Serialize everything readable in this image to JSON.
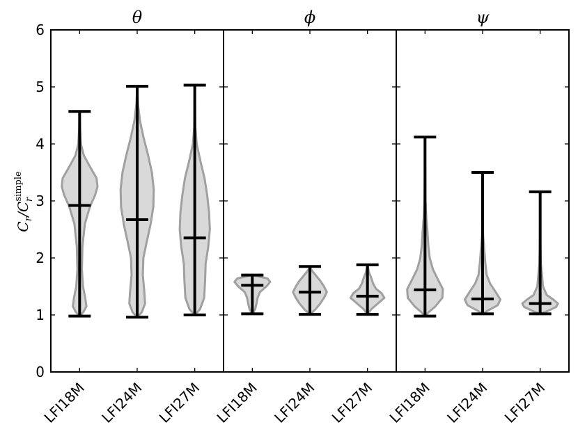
{
  "chart_data": {
    "type": "violin",
    "ylabel": {
      "main": "C",
      "sub": "r",
      "sup": "simple"
    },
    "ylim": [
      0,
      6
    ],
    "yticks": [
      "0",
      "1",
      "2",
      "3",
      "4",
      "5",
      "6"
    ],
    "grid": false,
    "panels": [
      {
        "title": "θ",
        "categories": [
          "LFI18M",
          "LFI24M",
          "LFI27M"
        ],
        "violins": [
          {
            "min": 0.98,
            "max": 4.57,
            "median": 2.92,
            "density": [
              [
                0.98,
                0.0
              ],
              [
                1.05,
                0.2
              ],
              [
                1.15,
                0.36
              ],
              [
                1.3,
                0.3
              ],
              [
                1.5,
                0.18
              ],
              [
                1.8,
                0.12
              ],
              [
                2.2,
                0.15
              ],
              [
                2.6,
                0.28
              ],
              [
                2.9,
                0.55
              ],
              [
                3.1,
                0.82
              ],
              [
                3.25,
                0.95
              ],
              [
                3.4,
                0.9
              ],
              [
                3.6,
                0.55
              ],
              [
                3.8,
                0.22
              ],
              [
                4.0,
                0.07
              ],
              [
                4.3,
                0.02
              ],
              [
                4.57,
                0.0
              ]
            ]
          },
          {
            "min": 0.96,
            "max": 5.01,
            "median": 2.67,
            "density": [
              [
                0.96,
                0.0
              ],
              [
                1.05,
                0.25
              ],
              [
                1.2,
                0.42
              ],
              [
                1.4,
                0.38
              ],
              [
                1.7,
                0.3
              ],
              [
                2.0,
                0.33
              ],
              [
                2.3,
                0.52
              ],
              [
                2.6,
                0.72
              ],
              [
                2.9,
                0.86
              ],
              [
                3.2,
                0.88
              ],
              [
                3.5,
                0.78
              ],
              [
                3.8,
                0.58
              ],
              [
                4.1,
                0.35
              ],
              [
                4.4,
                0.15
              ],
              [
                4.7,
                0.04
              ],
              [
                5.01,
                0.0
              ]
            ]
          },
          {
            "min": 1.0,
            "max": 5.03,
            "median": 2.35,
            "density": [
              [
                1.0,
                0.0
              ],
              [
                1.1,
                0.28
              ],
              [
                1.3,
                0.5
              ],
              [
                1.6,
                0.55
              ],
              [
                1.9,
                0.58
              ],
              [
                2.2,
                0.72
              ],
              [
                2.5,
                0.8
              ],
              [
                2.8,
                0.76
              ],
              [
                3.1,
                0.66
              ],
              [
                3.4,
                0.52
              ],
              [
                3.7,
                0.3
              ],
              [
                4.0,
                0.1
              ],
              [
                4.3,
                0.03
              ],
              [
                5.03,
                0.0
              ]
            ]
          }
        ]
      },
      {
        "title": "ϕ",
        "categories": [
          "LFI18M",
          "LFI24M",
          "LFI27M"
        ],
        "violins": [
          {
            "min": 1.02,
            "max": 1.7,
            "median": 1.52,
            "density": [
              [
                1.02,
                0.0
              ],
              [
                1.1,
                0.15
              ],
              [
                1.2,
                0.22
              ],
              [
                1.3,
                0.28
              ],
              [
                1.4,
                0.4
              ],
              [
                1.5,
                0.75
              ],
              [
                1.58,
                0.95
              ],
              [
                1.64,
                0.8
              ],
              [
                1.7,
                0.0
              ]
            ]
          },
          {
            "min": 1.01,
            "max": 1.85,
            "median": 1.4,
            "density": [
              [
                1.01,
                0.0
              ],
              [
                1.1,
                0.3
              ],
              [
                1.2,
                0.55
              ],
              [
                1.3,
                0.75
              ],
              [
                1.4,
                0.9
              ],
              [
                1.5,
                0.75
              ],
              [
                1.6,
                0.55
              ],
              [
                1.7,
                0.3
              ],
              [
                1.78,
                0.1
              ],
              [
                1.85,
                0.0
              ]
            ]
          },
          {
            "min": 1.01,
            "max": 1.88,
            "median": 1.33,
            "density": [
              [
                1.01,
                0.0
              ],
              [
                1.1,
                0.2
              ],
              [
                1.2,
                0.55
              ],
              [
                1.3,
                0.9
              ],
              [
                1.38,
                0.75
              ],
              [
                1.46,
                0.45
              ],
              [
                1.55,
                0.3
              ],
              [
                1.65,
                0.2
              ],
              [
                1.75,
                0.08
              ],
              [
                1.88,
                0.0
              ]
            ]
          }
        ]
      },
      {
        "title": "ψ",
        "categories": [
          "LFI18M",
          "LFI24M",
          "LFI27M"
        ],
        "violins": [
          {
            "min": 0.98,
            "max": 4.12,
            "median": 1.44,
            "density": [
              [
                0.98,
                0.0
              ],
              [
                1.05,
                0.2
              ],
              [
                1.15,
                0.55
              ],
              [
                1.3,
                0.92
              ],
              [
                1.45,
                0.95
              ],
              [
                1.6,
                0.72
              ],
              [
                1.8,
                0.42
              ],
              [
                2.0,
                0.25
              ],
              [
                2.2,
                0.18
              ],
              [
                2.5,
                0.12
              ],
              [
                2.7,
                0.07
              ],
              [
                3.0,
                0.03
              ],
              [
                3.5,
                0.01
              ],
              [
                4.12,
                0.0
              ]
            ]
          },
          {
            "min": 1.02,
            "max": 3.5,
            "median": 1.28,
            "density": [
              [
                1.02,
                0.0
              ],
              [
                1.08,
                0.3
              ],
              [
                1.17,
                0.8
              ],
              [
                1.27,
                0.95
              ],
              [
                1.4,
                0.7
              ],
              [
                1.55,
                0.4
              ],
              [
                1.7,
                0.22
              ],
              [
                1.9,
                0.15
              ],
              [
                2.1,
                0.1
              ],
              [
                2.4,
                0.03
              ],
              [
                3.0,
                0.01
              ],
              [
                3.5,
                0.0
              ]
            ]
          },
          {
            "min": 1.02,
            "max": 3.16,
            "median": 1.2,
            "density": [
              [
                1.02,
                0.0
              ],
              [
                1.07,
                0.4
              ],
              [
                1.14,
                0.85
              ],
              [
                1.2,
                0.95
              ],
              [
                1.27,
                0.7
              ],
              [
                1.35,
                0.35
              ],
              [
                1.5,
                0.15
              ],
              [
                1.7,
                0.1
              ],
              [
                1.9,
                0.04
              ],
              [
                2.3,
                0.01
              ],
              [
                3.16,
                0.0
              ]
            ]
          }
        ]
      }
    ]
  }
}
